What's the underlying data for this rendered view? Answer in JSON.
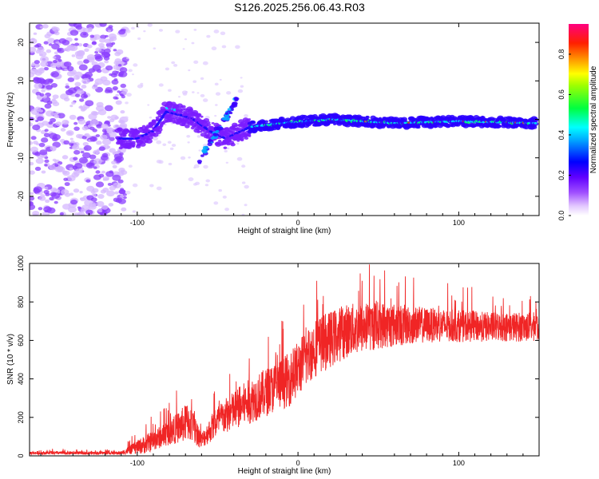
{
  "title": "S126.2025.256.06.43.R03",
  "chart_data": [
    {
      "type": "heatmap",
      "name": "spectrogram",
      "xlabel": "Height of straight line (km)",
      "ylabel": "Frequency (Hz)",
      "xlim": [
        -167,
        150
      ],
      "ylim": [
        -25,
        25
      ],
      "xticks": [
        "-100",
        "0",
        "100"
      ],
      "xtick_values": [
        -100,
        0,
        100
      ],
      "yticks": [
        "-20",
        "-10",
        "0",
        "10",
        "20"
      ],
      "ytick_values": [
        -20,
        -10,
        0,
        10,
        20
      ],
      "colorbar": {
        "label": "Normalized spectral amplitude",
        "range": [
          0,
          0.95
        ],
        "ticks": [
          "0.0",
          "0.2",
          "0.4",
          "0.6",
          "0.8"
        ],
        "tick_values": [
          0.0,
          0.2,
          0.4,
          0.6,
          0.8
        ],
        "colors": [
          "#ffffff",
          "#d8b4ff",
          "#8000ff",
          "#0000ff",
          "#00ffff",
          "#00ff00",
          "#ffff00",
          "#ff8000",
          "#ff0000",
          "#ff0080"
        ]
      },
      "track": {
        "description_values": [
          {
            "x": -112,
            "f": -5
          },
          {
            "x": -100,
            "f": -5
          },
          {
            "x": -90,
            "f": -3
          },
          {
            "x": -82,
            "f": 2
          },
          {
            "x": -72,
            "f": 1
          },
          {
            "x": -65,
            "f": 0
          },
          {
            "x": -55,
            "f": -3
          },
          {
            "x": -45,
            "f": -5
          },
          {
            "x": -30,
            "f": -2
          },
          {
            "x": -10,
            "f": -1
          },
          {
            "x": 20,
            "f": 0
          },
          {
            "x": 60,
            "f": -1
          },
          {
            "x": 100,
            "f": -0.5
          },
          {
            "x": 148,
            "f": -1
          }
        ]
      }
    },
    {
      "type": "line",
      "name": "snr",
      "xlabel": "Height of straight line (km)",
      "ylabel": "SNR (10 * v/v)",
      "xlim": [
        -167,
        150
      ],
      "ylim": [
        0,
        1000
      ],
      "xticks": [
        "-100",
        "0",
        "100"
      ],
      "xtick_values": [
        -100,
        0,
        100
      ],
      "yticks": [
        "0",
        "200",
        "400",
        "600",
        "800",
        "1000"
      ],
      "ytick_values": [
        0,
        200,
        400,
        600,
        800,
        1000
      ],
      "color": "#ff2020",
      "envelope": [
        {
          "x": -167,
          "mean": 15,
          "spread": 12
        },
        {
          "x": -110,
          "mean": 15,
          "spread": 12
        },
        {
          "x": -95,
          "mean": 60,
          "spread": 70
        },
        {
          "x": -80,
          "mean": 120,
          "spread": 90
        },
        {
          "x": -68,
          "mean": 180,
          "spread": 150
        },
        {
          "x": -60,
          "mean": 80,
          "spread": 60
        },
        {
          "x": -50,
          "mean": 180,
          "spread": 120
        },
        {
          "x": -35,
          "mean": 260,
          "spread": 160
        },
        {
          "x": -20,
          "mean": 330,
          "spread": 180
        },
        {
          "x": -5,
          "mean": 400,
          "spread": 200
        },
        {
          "x": 10,
          "mean": 560,
          "spread": 220
        },
        {
          "x": 30,
          "mean": 650,
          "spread": 200
        },
        {
          "x": 50,
          "mean": 680,
          "spread": 180
        },
        {
          "x": 80,
          "mean": 680,
          "spread": 130
        },
        {
          "x": 120,
          "mean": 670,
          "spread": 110
        },
        {
          "x": 150,
          "mean": 670,
          "spread": 110
        }
      ]
    }
  ]
}
